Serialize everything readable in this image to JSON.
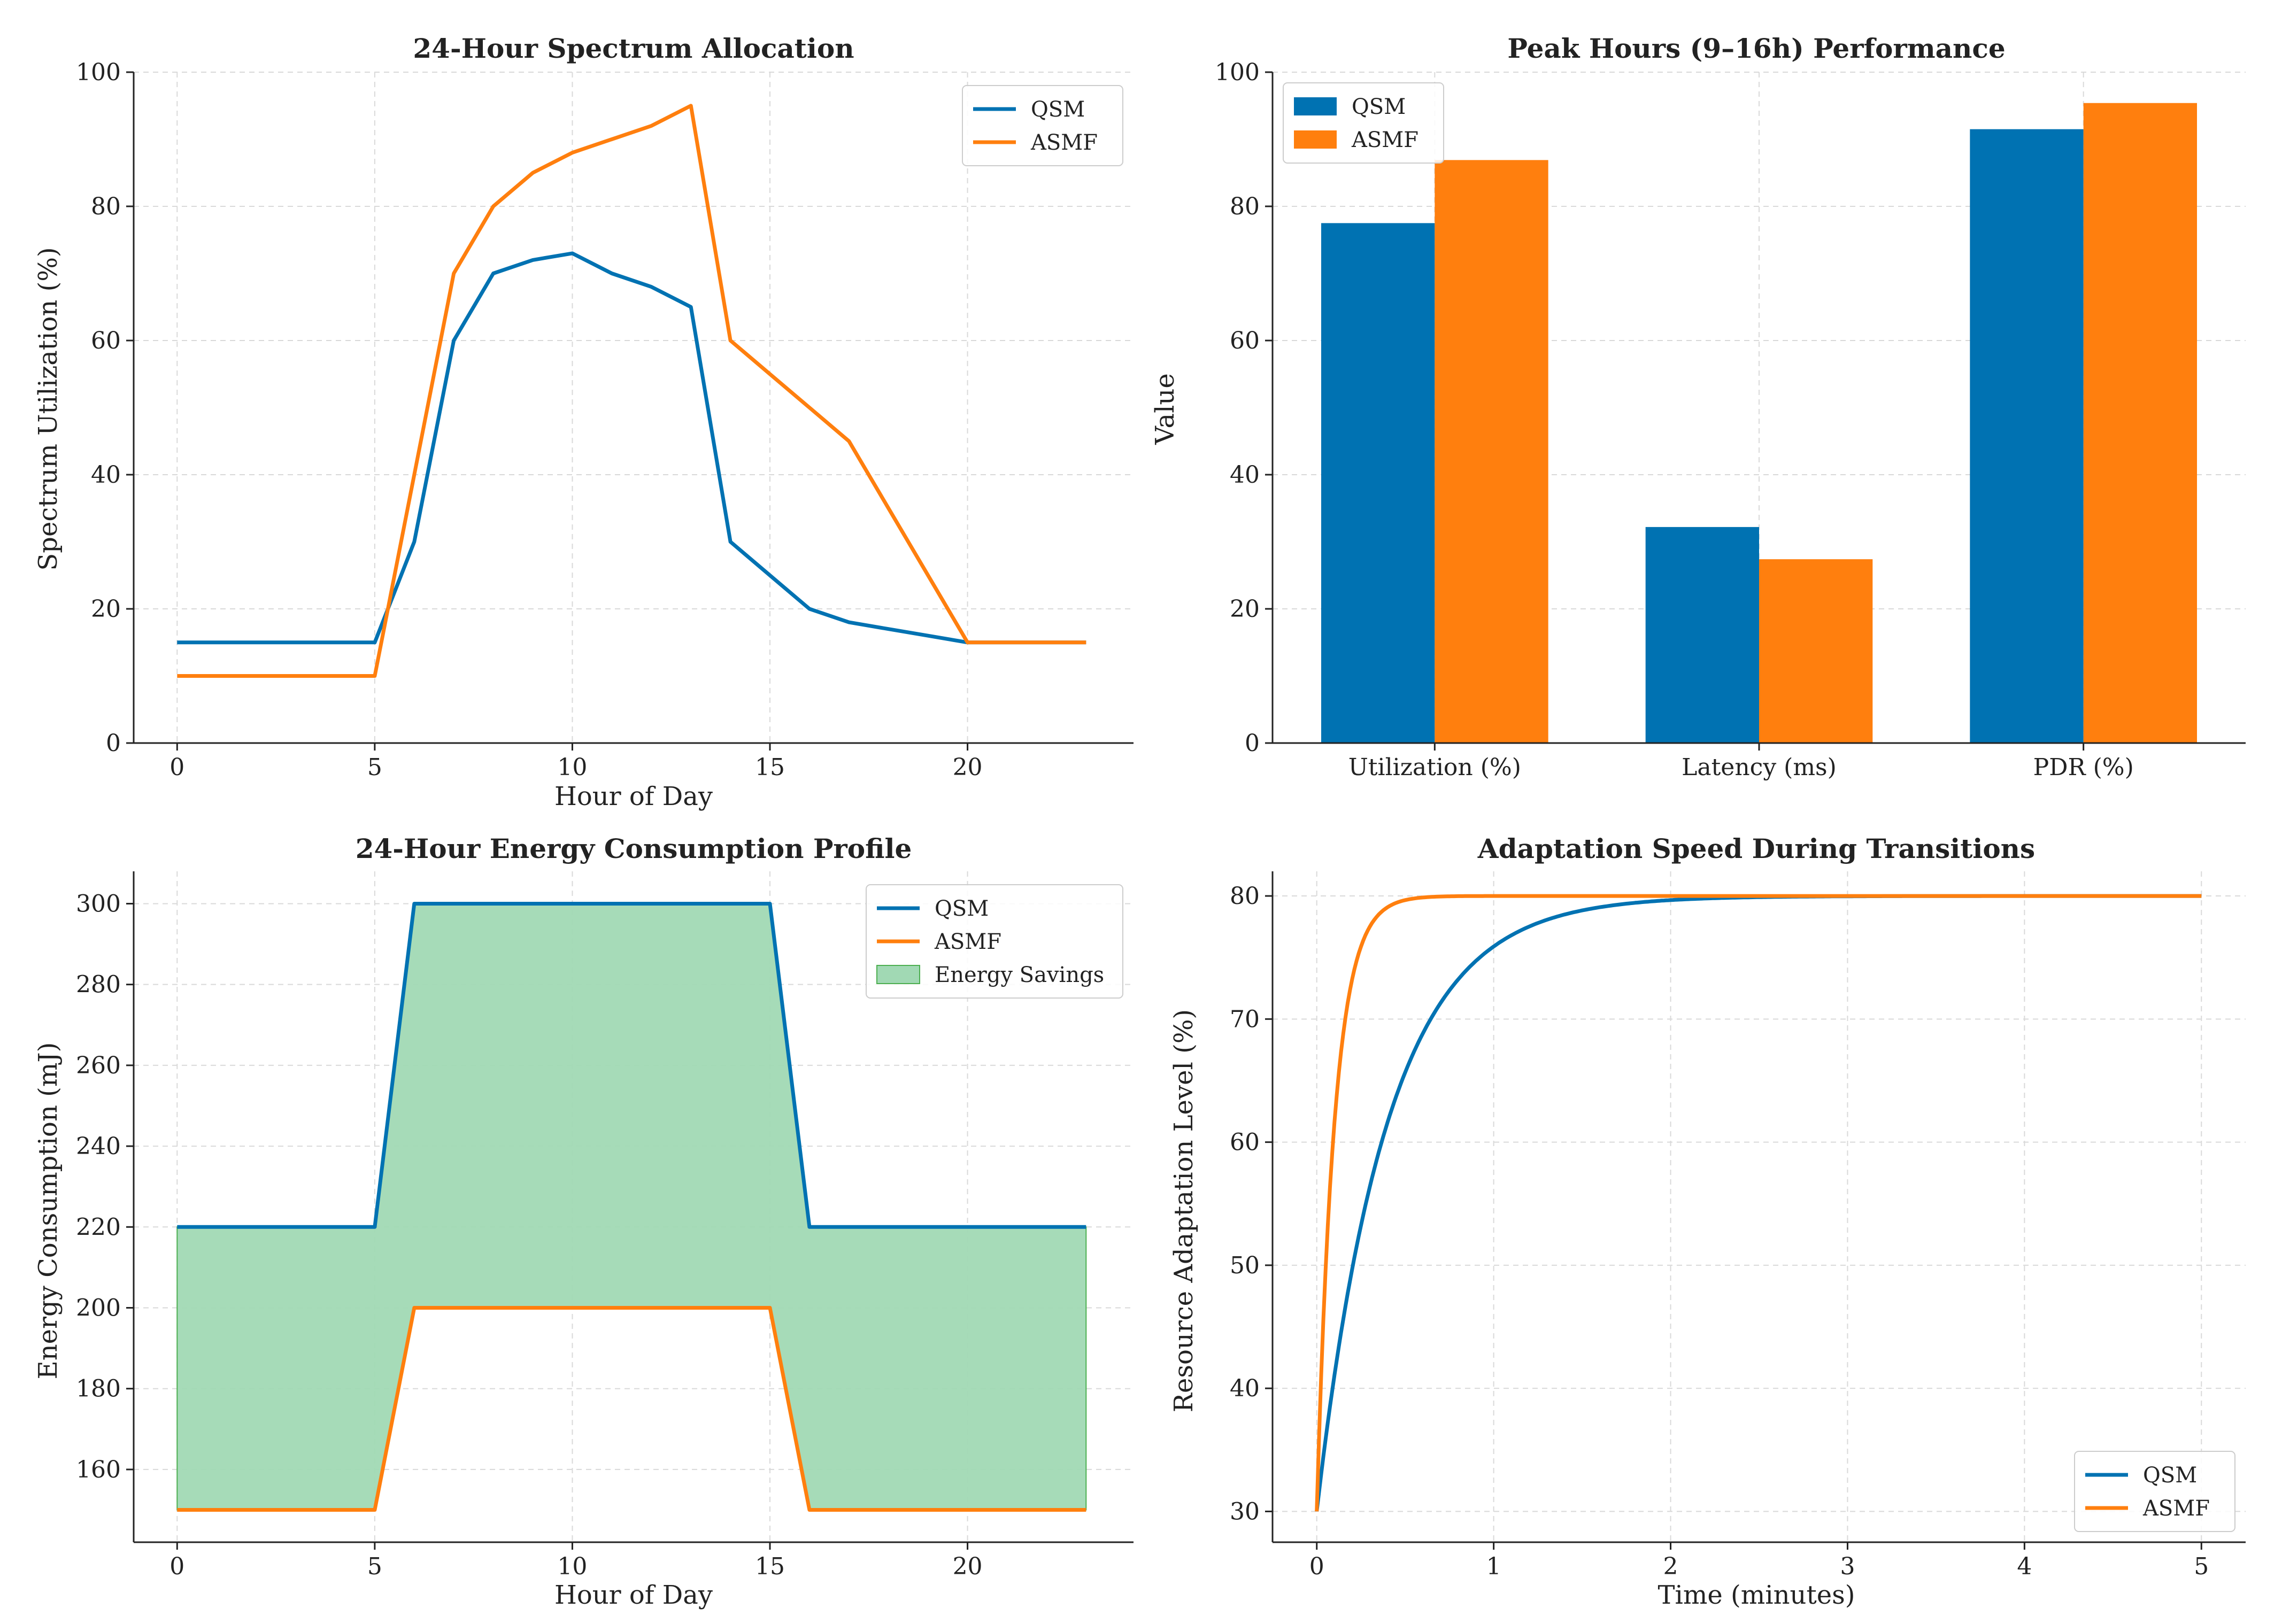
{
  "colors": {
    "qsm": "#0072b2",
    "asmf": "#ff7f0e",
    "savings": "#a1d9b4",
    "savings_edge": "#4caf50"
  },
  "chart_data": [
    {
      "id": "p1",
      "type": "line",
      "title": "24-Hour Spectrum Allocation",
      "xlabel": "Hour of Day",
      "ylabel": "Spectrum Utilization (%)",
      "xlim": [
        -1.1,
        24.2
      ],
      "ylim": [
        0,
        100
      ],
      "xticks": [
        0,
        5,
        10,
        15,
        20
      ],
      "yticks": [
        0,
        20,
        40,
        60,
        80,
        100
      ],
      "legend_position": "upper right",
      "series": [
        {
          "name": "QSM",
          "color": "#0072b2",
          "x": [
            0,
            1,
            2,
            3,
            4,
            5,
            6,
            7,
            8,
            9,
            10,
            11,
            12,
            13,
            14,
            15,
            16,
            17,
            18,
            19,
            20,
            21,
            22,
            23
          ],
          "values": [
            15,
            15,
            15,
            15,
            15,
            15,
            30,
            60,
            70,
            72,
            73,
            70,
            68,
            65,
            30,
            25,
            20,
            18,
            17,
            16,
            15,
            15,
            15,
            15
          ]
        },
        {
          "name": "ASMF",
          "color": "#ff7f0e",
          "x": [
            0,
            1,
            2,
            3,
            4,
            5,
            6,
            7,
            8,
            9,
            10,
            11,
            12,
            13,
            14,
            15,
            16,
            17,
            18,
            19,
            20,
            21,
            22,
            23
          ],
          "values": [
            10,
            10,
            10,
            10,
            10,
            10,
            40,
            70,
            80,
            85,
            88,
            90,
            92,
            95,
            60,
            55,
            50,
            45,
            35,
            25,
            15,
            15,
            15,
            15
          ]
        }
      ]
    },
    {
      "id": "p2",
      "type": "bar",
      "title": "Peak Hours (9–16h) Performance",
      "xlabel": "",
      "ylabel": "Value",
      "ylim": [
        0,
        100
      ],
      "yticks": [
        0,
        20,
        40,
        60,
        80,
        100
      ],
      "categories": [
        "Utilization (%)",
        "Latency (ms)",
        "PDR (%)"
      ],
      "legend_position": "upper left",
      "series": [
        {
          "name": "QSM",
          "color": "#0072b2",
          "values": [
            77.5,
            32.2,
            91.5
          ]
        },
        {
          "name": "ASMF",
          "color": "#ff7f0e",
          "values": [
            86.9,
            27.4,
            95.4
          ]
        }
      ]
    },
    {
      "id": "p3",
      "type": "line",
      "title": "24-Hour Energy Consumption Profile",
      "xlabel": "Hour of Day",
      "ylabel": "Energy Consumption (mJ)",
      "xlim": [
        -1.1,
        24.2
      ],
      "ylim": [
        142,
        308
      ],
      "xticks": [
        0,
        5,
        10,
        15,
        20
      ],
      "yticks": [
        160,
        180,
        200,
        220,
        240,
        260,
        280,
        300
      ],
      "legend_position": "upper right",
      "fill_between": {
        "name": "Energy Savings",
        "color": "#a1d9b4"
      },
      "series": [
        {
          "name": "QSM",
          "color": "#0072b2",
          "x": [
            0,
            1,
            2,
            3,
            4,
            5,
            6,
            7,
            8,
            9,
            10,
            11,
            12,
            13,
            14,
            15,
            16,
            17,
            18,
            19,
            20,
            21,
            22,
            23
          ],
          "values": [
            220,
            220,
            220,
            220,
            220,
            220,
            300,
            300,
            300,
            300,
            300,
            300,
            300,
            300,
            300,
            300,
            220,
            220,
            220,
            220,
            220,
            220,
            220,
            220
          ]
        },
        {
          "name": "ASMF",
          "color": "#ff7f0e",
          "x": [
            0,
            1,
            2,
            3,
            4,
            5,
            6,
            7,
            8,
            9,
            10,
            11,
            12,
            13,
            14,
            15,
            16,
            17,
            18,
            19,
            20,
            21,
            22,
            23
          ],
          "values": [
            150,
            150,
            150,
            150,
            150,
            150,
            200,
            200,
            200,
            200,
            200,
            200,
            200,
            200,
            200,
            200,
            150,
            150,
            150,
            150,
            150,
            150,
            150,
            150
          ]
        }
      ]
    },
    {
      "id": "p4",
      "type": "line",
      "title": "Adaptation Speed During Transitions",
      "xlabel": "Time (minutes)",
      "ylabel": "Resource Adaptation Level (%)",
      "xlim": [
        -0.25,
        5.25
      ],
      "ylim": [
        27.5,
        82
      ],
      "xticks": [
        0,
        1,
        2,
        3,
        4,
        5
      ],
      "yticks": [
        30,
        40,
        50,
        60,
        70,
        80
      ],
      "legend_position": "lower right",
      "series": [
        {
          "name": "QSM",
          "color": "#0072b2",
          "start": 30,
          "end": 80,
          "time_constant": 0.4,
          "t_max": 5
        },
        {
          "name": "ASMF",
          "color": "#ff7f0e",
          "start": 30,
          "end": 80,
          "time_constant": 0.1,
          "t_max": 5
        }
      ]
    }
  ]
}
